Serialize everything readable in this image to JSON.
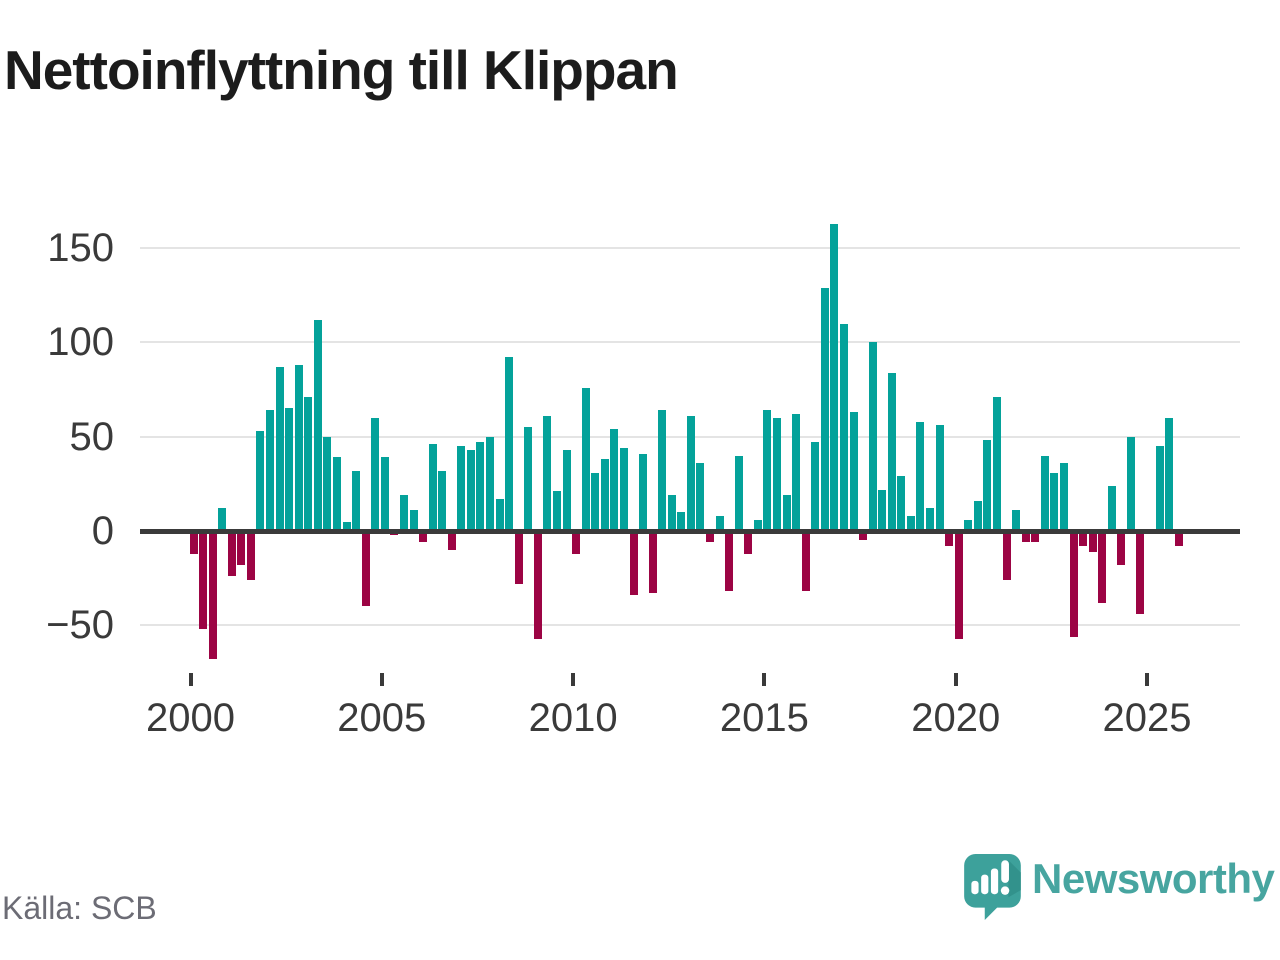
{
  "title": "Nettoinflyttning till Klippan",
  "source": "Källa: SCB",
  "branding": {
    "logo_text": "Newsworthy",
    "logo_icon": "speech-bubble-bar-chart"
  },
  "chart_data": {
    "type": "bar",
    "title": "Nettoinflyttning till Klippan",
    "frequency": "quarterly",
    "start_period": "2000Q1",
    "end_period": "2025Q4",
    "x_tick_labels": [
      "2000",
      "2005",
      "2010",
      "2015",
      "2020",
      "2025"
    ],
    "y_ticks": [
      150,
      100,
      50,
      0,
      -50
    ],
    "ylim": [
      -75,
      175
    ],
    "grid": true,
    "legend": false,
    "colors": {
      "positive": "#04a29a",
      "negative": "#9c0444",
      "axis": "#3a3a3a",
      "gridline": "#e4e4e4",
      "logo_teal": "#47a5a0"
    },
    "series": [
      {
        "name": "Nettoinflyttning",
        "values": [
          -12,
          -52,
          -68,
          12,
          -24,
          -18,
          -26,
          53,
          64,
          87,
          65,
          88,
          71,
          112,
          50,
          39,
          5,
          32,
          -40,
          60,
          39,
          -2,
          19,
          11,
          -6,
          46,
          32,
          -10,
          45,
          43,
          47,
          50,
          17,
          92,
          -28,
          55,
          -57,
          61,
          21,
          43,
          -12,
          76,
          31,
          38,
          54,
          44,
          -34,
          41,
          -33,
          64,
          19,
          10,
          61,
          36,
          -6,
          8,
          -32,
          40,
          -12,
          6,
          64,
          60,
          19,
          62,
          -32,
          47,
          129,
          163,
          110,
          63,
          -5,
          100,
          22,
          84,
          29,
          8,
          58,
          12,
          56,
          -8,
          -57,
          6,
          16,
          48,
          71,
          -26,
          11,
          -6,
          -6,
          40,
          31,
          36,
          -56,
          -8,
          -11,
          -38,
          24,
          -18,
          50,
          -44,
          0,
          45,
          60,
          -8
        ]
      }
    ]
  }
}
